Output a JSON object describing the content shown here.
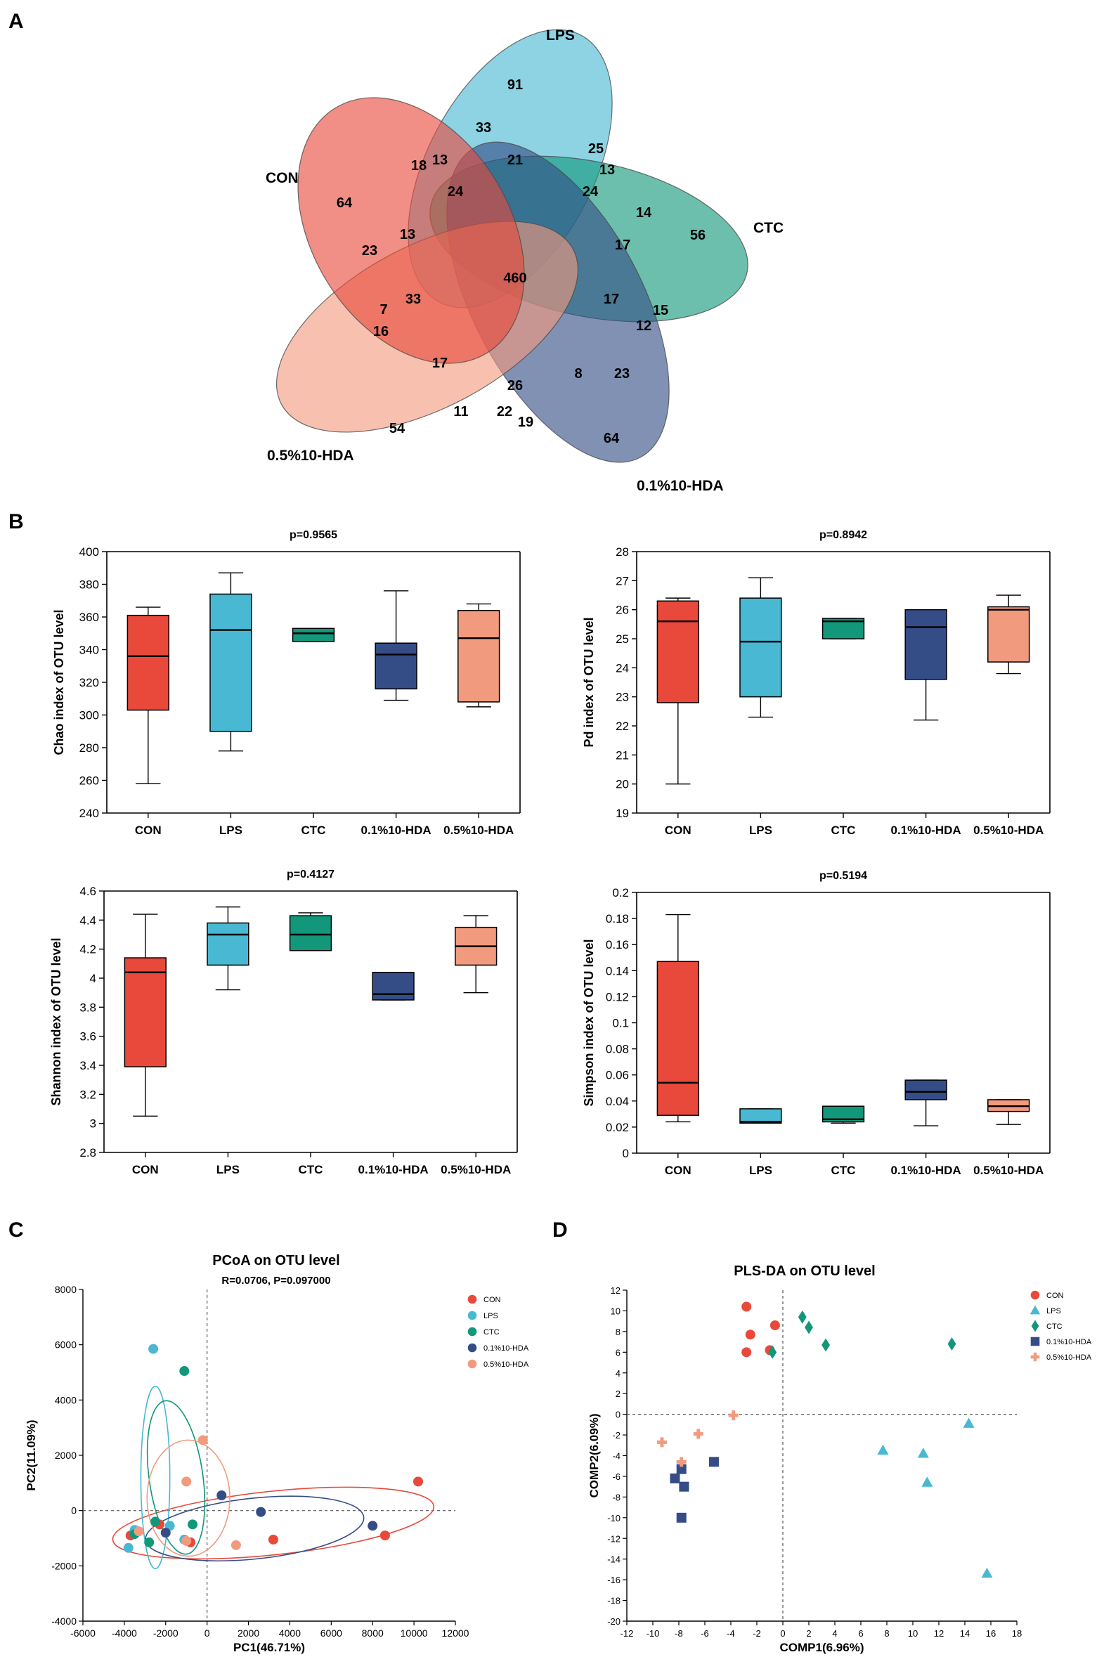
{
  "panel_labels": {
    "a": "A",
    "b": "B",
    "c": "C",
    "d": "D"
  },
  "colors": {
    "CON": "#e8493a",
    "LPS": "#49b8d3",
    "CTC": "#12977a",
    "HDA01": "#344d86",
    "HDA05": "#f29a7e"
  },
  "chart_data": [
    {
      "type": "venn",
      "panel": "A",
      "sets": [
        "LPS",
        "CTC",
        "0.1%10-HDA",
        "0.5%10-HDA",
        "CON"
      ],
      "region_values": [
        91,
        33,
        21,
        25,
        13,
        18,
        13,
        24,
        24,
        14,
        64,
        56,
        23,
        13,
        17,
        460,
        33,
        17,
        15,
        12,
        7,
        16,
        17,
        26,
        8,
        23,
        11,
        22,
        19,
        54,
        64
      ]
    },
    {
      "type": "box",
      "panel": "B",
      "title": "p=0.9565",
      "ylabel": "Chao index of OTU level",
      "categories": [
        "CON",
        "LPS",
        "CTC",
        "0.1%10-HDA",
        "0.5%10-HDA"
      ],
      "ylim": [
        240,
        400
      ],
      "yticks": [
        240,
        260,
        280,
        300,
        320,
        340,
        360,
        380,
        400
      ],
      "boxes": [
        {
          "min": 258,
          "q1": 303,
          "median": 336,
          "q3": 361,
          "max": 366
        },
        {
          "min": 278,
          "q1": 290,
          "median": 352,
          "q3": 374,
          "max": 387
        },
        {
          "min": 345,
          "q1": 345,
          "median": 350,
          "q3": 353,
          "max": 353
        },
        {
          "min": 309,
          "q1": 316,
          "median": 337,
          "q3": 344,
          "max": 376
        },
        {
          "min": 305,
          "q1": 308,
          "median": 347,
          "q3": 364,
          "max": 368
        }
      ]
    },
    {
      "type": "box",
      "panel": "B",
      "title": "p=0.8942",
      "ylabel": "Pd index of OTU level",
      "categories": [
        "CON",
        "LPS",
        "CTC",
        "0.1%10-HDA",
        "0.5%10-HDA"
      ],
      "ylim": [
        19,
        28
      ],
      "yticks": [
        19,
        20,
        21,
        22,
        23,
        24,
        25,
        26,
        27,
        28
      ],
      "boxes": [
        {
          "min": 20.0,
          "q1": 22.8,
          "median": 25.6,
          "q3": 26.3,
          "max": 26.4
        },
        {
          "min": 22.3,
          "q1": 23.0,
          "median": 24.9,
          "q3": 26.4,
          "max": 27.1
        },
        {
          "min": 25.0,
          "q1": 25.0,
          "median": 25.6,
          "q3": 25.7,
          "max": 25.7
        },
        {
          "min": 22.2,
          "q1": 23.6,
          "median": 25.4,
          "q3": 26.0,
          "max": 26.0
        },
        {
          "min": 23.8,
          "q1": 24.2,
          "median": 26.0,
          "q3": 26.1,
          "max": 26.5
        }
      ]
    },
    {
      "type": "box",
      "panel": "B",
      "title": "p=0.4127",
      "ylabel": "Shannon index of OTU level",
      "categories": [
        "CON",
        "LPS",
        "CTC",
        "0.1%10-HDA",
        "0.5%10-HDA"
      ],
      "ylim": [
        2.8,
        4.6
      ],
      "yticks": [
        "2.8",
        "3",
        "3.2",
        "3.4",
        "3.6",
        "3.8",
        "4",
        "4.2",
        "4.4",
        "4.6"
      ],
      "boxes": [
        {
          "min": 3.05,
          "q1": 3.39,
          "median": 4.04,
          "q3": 4.14,
          "max": 4.44
        },
        {
          "min": 3.92,
          "q1": 4.09,
          "median": 4.3,
          "q3": 4.38,
          "max": 4.49
        },
        {
          "min": 4.19,
          "q1": 4.19,
          "median": 4.3,
          "q3": 4.43,
          "max": 4.45
        },
        {
          "min": 3.85,
          "q1": 3.85,
          "median": 3.89,
          "q3": 4.04,
          "max": 4.04
        },
        {
          "min": 3.9,
          "q1": 4.09,
          "median": 4.22,
          "q3": 4.35,
          "max": 4.43
        }
      ]
    },
    {
      "type": "box",
      "panel": "B",
      "title": "p=0.5194",
      "ylabel": "Simpson index of OTU level",
      "categories": [
        "CON",
        "LPS",
        "CTC",
        "0.1%10-HDA",
        "0.5%10-HDA"
      ],
      "ylim": [
        0,
        0.2
      ],
      "yticks": [
        "0",
        "0.02",
        "0.04",
        "0.06",
        "0.08",
        "0.1",
        "0.12",
        "0.14",
        "0.16",
        "0.18",
        "0.2"
      ],
      "boxes": [
        {
          "min": 0.024,
          "q1": 0.029,
          "median": 0.054,
          "q3": 0.147,
          "max": 0.183
        },
        {
          "min": 0.023,
          "q1": 0.023,
          "median": 0.024,
          "q3": 0.034,
          "max": 0.034
        },
        {
          "min": 0.023,
          "q1": 0.024,
          "median": 0.026,
          "q3": 0.036,
          "max": 0.036
        },
        {
          "min": 0.021,
          "q1": 0.041,
          "median": 0.047,
          "q3": 0.056,
          "max": 0.056
        },
        {
          "min": 0.022,
          "q1": 0.032,
          "median": 0.036,
          "q3": 0.041,
          "max": 0.041
        }
      ]
    },
    {
      "type": "scatter",
      "panel": "C",
      "title": "PCoA on OTU level",
      "subtitle": "R=0.0706, P=0.097000",
      "xlabel": "PC1(46.71%)",
      "ylabel": "PC2(11.09%)",
      "xlim": [
        -6000,
        12000
      ],
      "ylim": [
        -4000,
        8000
      ],
      "xticks": [
        -6000,
        -4000,
        -2000,
        0,
        2000,
        4000,
        6000,
        8000,
        10000,
        12000
      ],
      "yticks": [
        -4000,
        -2000,
        0,
        2000,
        4000,
        6000,
        8000
      ],
      "legend": [
        "CON",
        "LPS",
        "CTC",
        "0.1%10-HDA",
        "0.5%10-HDA"
      ],
      "series": [
        {
          "name": "CON",
          "key": "CON",
          "points": [
            [
              10200,
              1050
            ],
            [
              8600,
              -900
            ],
            [
              3200,
              -1050
            ],
            [
              -3700,
              -900
            ],
            [
              -2300,
              -500
            ],
            [
              -800,
              -1150
            ]
          ],
          "ellipse": {
            "cx": 3200,
            "cy": -450,
            "rx": 7800,
            "ry": 1150,
            "angle": 6
          }
        },
        {
          "name": "LPS",
          "key": "LPS",
          "points": [
            [
              -2600,
              5850
            ],
            [
              -3800,
              -1350
            ],
            [
              -3500,
              -700
            ],
            [
              -1800,
              -550
            ],
            [
              -1100,
              -1050
            ]
          ],
          "ellipse": {
            "cx": -2500,
            "cy": 1200,
            "rx": 700,
            "ry": 3300,
            "angle": 0
          }
        },
        {
          "name": "CTC",
          "key": "CTC",
          "points": [
            [
              -1100,
              5050
            ],
            [
              -3500,
              -850
            ],
            [
              -2800,
              -1150
            ],
            [
              -700,
              -500
            ],
            [
              -2500,
              -400
            ]
          ],
          "ellipse": {
            "cx": -1500,
            "cy": 1200,
            "rx": 1300,
            "ry": 2800,
            "angle": 8
          }
        },
        {
          "name": "0.1%10-HDA",
          "key": "HDA01",
          "points": [
            [
              700,
              550
            ],
            [
              2600,
              -50
            ],
            [
              8000,
              -550
            ],
            [
              -2000,
              -800
            ]
          ],
          "ellipse": {
            "cx": 2300,
            "cy": -650,
            "rx": 5300,
            "ry": 1100,
            "angle": 6
          }
        },
        {
          "name": "0.5%10-HDA",
          "key": "HDA05",
          "points": [
            [
              -200,
              2550
            ],
            [
              -1000,
              1050
            ],
            [
              -3300,
              -750
            ],
            [
              -1000,
              -1100
            ],
            [
              1400,
              -1250
            ]
          ],
          "ellipse": {
            "cx": -900,
            "cy": 450,
            "rx": 2000,
            "ry": 2100,
            "angle": 0
          }
        }
      ]
    },
    {
      "type": "scatter",
      "panel": "D",
      "title": "PLS-DA on OTU level",
      "xlabel": "COMP1(6.96%)",
      "ylabel": "COMP2(6.09%)",
      "xlim": [
        -12,
        18
      ],
      "ylim": [
        -20,
        12
      ],
      "xticks": [
        -12,
        -10,
        -8,
        -6,
        -4,
        -2,
        0,
        2,
        4,
        6,
        8,
        10,
        12,
        14,
        16,
        18
      ],
      "yticks": [
        -20,
        -18,
        -16,
        -14,
        -12,
        -10,
        -8,
        -6,
        -4,
        -2,
        0,
        2,
        4,
        6,
        8,
        10,
        12
      ],
      "legend": [
        "CON",
        "LPS",
        "CTC",
        "0.1%10-HDA",
        "0.5%10-HDA"
      ],
      "series": [
        {
          "name": "CON",
          "key": "CON",
          "shape": "circle",
          "points": [
            [
              -2.8,
              10.4
            ],
            [
              -0.6,
              8.6
            ],
            [
              -2.5,
              7.7
            ],
            [
              -2.8,
              6.0
            ],
            [
              -1.0,
              6.2
            ]
          ]
        },
        {
          "name": "LPS",
          "key": "LPS",
          "shape": "triangle",
          "points": [
            [
              14.3,
              -0.9
            ],
            [
              7.7,
              -3.5
            ],
            [
              10.8,
              -3.8
            ],
            [
              11.1,
              -6.6
            ],
            [
              15.7,
              -15.4
            ]
          ]
        },
        {
          "name": "CTC",
          "key": "CTC",
          "shape": "diamond",
          "points": [
            [
              1.5,
              9.4
            ],
            [
              2.0,
              8.4
            ],
            [
              3.3,
              6.7
            ],
            [
              -0.8,
              6.0
            ],
            [
              13.0,
              6.8
            ]
          ]
        },
        {
          "name": "0.1%10-HDA",
          "key": "HDA01",
          "shape": "square",
          "points": [
            [
              -5.3,
              -4.6
            ],
            [
              -8.3,
              -6.2
            ],
            [
              -7.8,
              -5.3
            ],
            [
              -7.6,
              -7.0
            ],
            [
              -7.8,
              -10.0
            ]
          ]
        },
        {
          "name": "0.5%10-HDA",
          "key": "HDA05",
          "shape": "plus",
          "points": [
            [
              -3.8,
              -0.1
            ],
            [
              -6.5,
              -1.9
            ],
            [
              -9.3,
              -2.7
            ],
            [
              -7.8,
              -4.6
            ]
          ]
        }
      ]
    }
  ]
}
